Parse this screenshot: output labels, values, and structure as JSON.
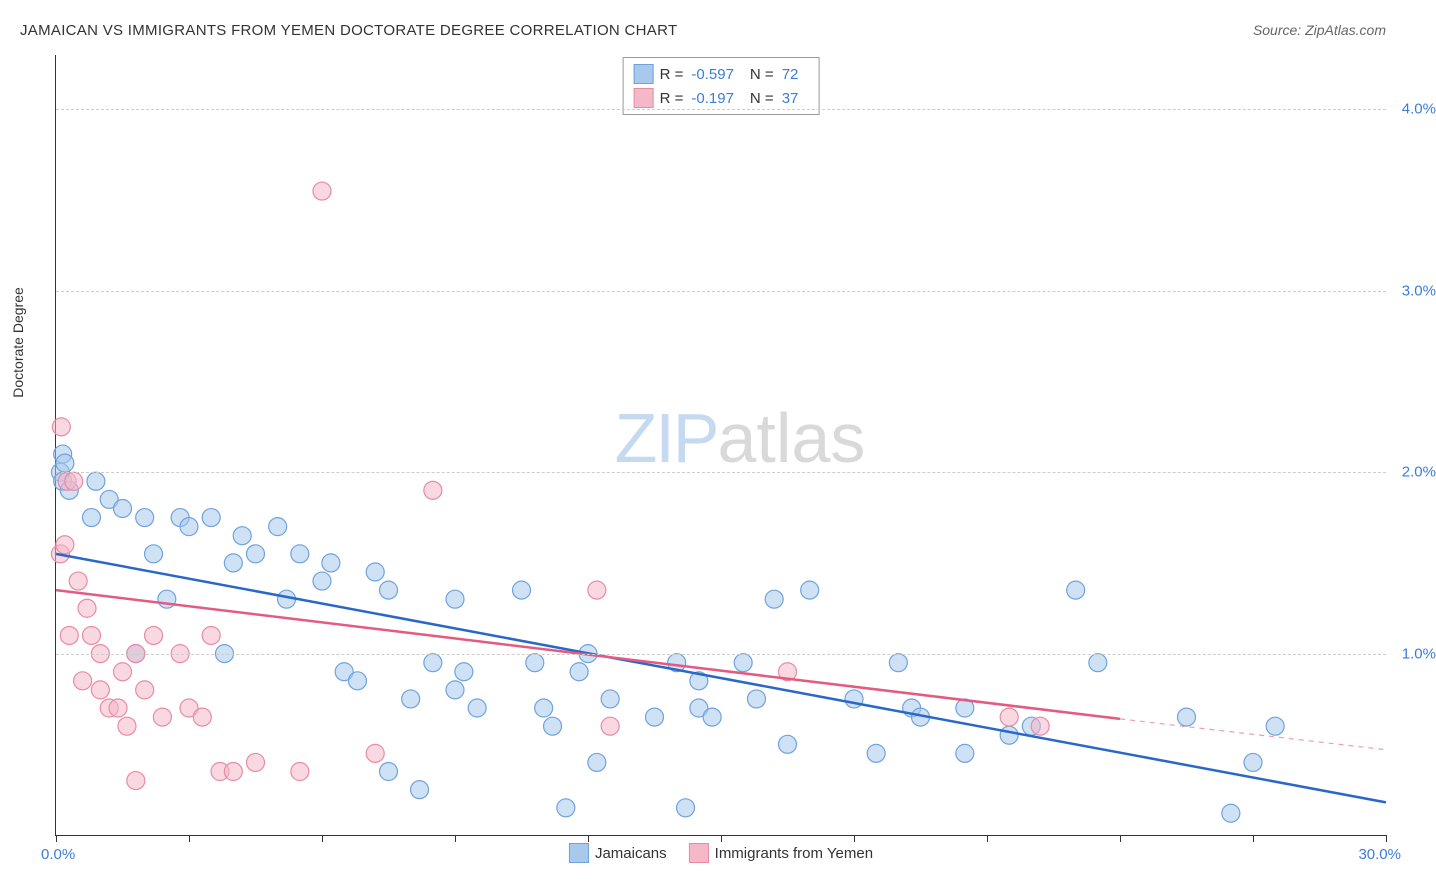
{
  "title": "JAMAICAN VS IMMIGRANTS FROM YEMEN DOCTORATE DEGREE CORRELATION CHART",
  "source": "Source: ZipAtlas.com",
  "y_axis_label": "Doctorate Degree",
  "watermark": {
    "zip": "ZIP",
    "atlas": "atlas"
  },
  "chart": {
    "type": "scatter-with-regression",
    "xlim": [
      0,
      30
    ],
    "ylim": [
      0,
      4.3
    ],
    "x_ticks": [
      0,
      3,
      6,
      9,
      12,
      15,
      18,
      21,
      24,
      27,
      30
    ],
    "x_tick_label_left": "0.0%",
    "x_tick_label_right": "30.0%",
    "y_gridlines": [
      {
        "value": 1.0,
        "label": "1.0%"
      },
      {
        "value": 2.0,
        "label": "2.0%"
      },
      {
        "value": 3.0,
        "label": "3.0%"
      },
      {
        "value": 4.0,
        "label": "4.0%"
      }
    ],
    "grid_color": "#cccccc",
    "background_color": "#ffffff",
    "axis_color": "#333333",
    "marker_radius": 9,
    "marker_opacity": 0.55,
    "line_width": 2.5,
    "series": [
      {
        "name": "Jamaicans",
        "fill_color": "#a8c8ec",
        "stroke_color": "#6fa3dd",
        "line_color": "#2968c8",
        "R": "-0.597",
        "N": "72",
        "regression": {
          "x1": 0,
          "y1": 1.55,
          "x2": 30,
          "y2": 0.18
        },
        "points": [
          [
            0.1,
            2.0
          ],
          [
            0.15,
            2.1
          ],
          [
            0.15,
            1.95
          ],
          [
            0.2,
            2.05
          ],
          [
            0.3,
            1.9
          ],
          [
            0.8,
            1.75
          ],
          [
            0.9,
            1.95
          ],
          [
            1.2,
            1.85
          ],
          [
            1.5,
            1.8
          ],
          [
            2.0,
            1.75
          ],
          [
            1.8,
            1.0
          ],
          [
            2.2,
            1.55
          ],
          [
            2.5,
            1.3
          ],
          [
            2.8,
            1.75
          ],
          [
            3.0,
            1.7
          ],
          [
            3.5,
            1.75
          ],
          [
            3.8,
            1.0
          ],
          [
            4.0,
            1.5
          ],
          [
            4.2,
            1.65
          ],
          [
            4.5,
            1.55
          ],
          [
            5.0,
            1.7
          ],
          [
            5.2,
            1.3
          ],
          [
            5.5,
            1.55
          ],
          [
            6.0,
            1.4
          ],
          [
            6.2,
            1.5
          ],
          [
            6.5,
            0.9
          ],
          [
            6.8,
            0.85
          ],
          [
            7.2,
            1.45
          ],
          [
            7.5,
            1.35
          ],
          [
            7.5,
            0.35
          ],
          [
            8.0,
            0.75
          ],
          [
            8.2,
            0.25
          ],
          [
            8.5,
            0.95
          ],
          [
            9.0,
            1.3
          ],
          [
            9.0,
            0.8
          ],
          [
            9.2,
            0.9
          ],
          [
            9.5,
            0.7
          ],
          [
            10.5,
            1.35
          ],
          [
            10.8,
            0.95
          ],
          [
            11.0,
            0.7
          ],
          [
            11.2,
            0.6
          ],
          [
            11.5,
            0.15
          ],
          [
            11.8,
            0.9
          ],
          [
            12.0,
            1.0
          ],
          [
            12.2,
            0.4
          ],
          [
            12.5,
            0.75
          ],
          [
            13.5,
            0.65
          ],
          [
            14.0,
            0.95
          ],
          [
            14.2,
            0.15
          ],
          [
            14.5,
            0.7
          ],
          [
            14.5,
            0.85
          ],
          [
            14.8,
            0.65
          ],
          [
            15.5,
            0.95
          ],
          [
            15.8,
            0.75
          ],
          [
            16.2,
            1.3
          ],
          [
            16.5,
            0.5
          ],
          [
            17.0,
            1.35
          ],
          [
            18.0,
            0.75
          ],
          [
            18.5,
            0.45
          ],
          [
            19.0,
            0.95
          ],
          [
            19.3,
            0.7
          ],
          [
            19.5,
            0.65
          ],
          [
            20.5,
            0.7
          ],
          [
            20.5,
            0.45
          ],
          [
            21.5,
            0.55
          ],
          [
            22.0,
            0.6
          ],
          [
            23.0,
            1.35
          ],
          [
            23.5,
            0.95
          ],
          [
            25.5,
            0.65
          ],
          [
            26.5,
            0.12
          ],
          [
            27.0,
            0.4
          ],
          [
            27.5,
            0.6
          ]
        ]
      },
      {
        "name": "Immigrants from Yemen",
        "fill_color": "#f5b8c8",
        "stroke_color": "#e88ba5",
        "line_color": "#e35a82",
        "R": "-0.197",
        "N": "37",
        "regression": {
          "x1": 0,
          "y1": 1.35,
          "x2": 24,
          "y2": 0.64
        },
        "regression_dash": {
          "x1": 24,
          "y1": 0.64,
          "x2": 30,
          "y2": 0.47
        },
        "points": [
          [
            0.1,
            1.55
          ],
          [
            0.12,
            2.25
          ],
          [
            0.2,
            1.6
          ],
          [
            0.25,
            1.95
          ],
          [
            0.3,
            1.1
          ],
          [
            0.4,
            1.95
          ],
          [
            0.5,
            1.4
          ],
          [
            0.6,
            0.85
          ],
          [
            0.7,
            1.25
          ],
          [
            0.8,
            1.1
          ],
          [
            1.0,
            0.8
          ],
          [
            1.0,
            1.0
          ],
          [
            1.2,
            0.7
          ],
          [
            1.4,
            0.7
          ],
          [
            1.5,
            0.9
          ],
          [
            1.6,
            0.6
          ],
          [
            1.8,
            0.3
          ],
          [
            1.8,
            1.0
          ],
          [
            2.0,
            0.8
          ],
          [
            2.2,
            1.1
          ],
          [
            2.4,
            0.65
          ],
          [
            2.8,
            1.0
          ],
          [
            3.0,
            0.7
          ],
          [
            3.3,
            0.65
          ],
          [
            3.5,
            1.1
          ],
          [
            3.7,
            0.35
          ],
          [
            4.0,
            0.35
          ],
          [
            4.5,
            0.4
          ],
          [
            5.5,
            0.35
          ],
          [
            6.0,
            3.55
          ],
          [
            7.2,
            0.45
          ],
          [
            8.5,
            1.9
          ],
          [
            12.2,
            1.35
          ],
          [
            12.5,
            0.6
          ],
          [
            16.5,
            0.9
          ],
          [
            21.5,
            0.65
          ],
          [
            22.2,
            0.6
          ]
        ]
      }
    ]
  },
  "legend_top": {
    "rows": [
      {
        "swatch_fill": "#a8c8ec",
        "swatch_stroke": "#6fa3dd",
        "r_label": "R =",
        "r_value": "-0.597",
        "n_label": "N =",
        "n_value": "72"
      },
      {
        "swatch_fill": "#f5b8c8",
        "swatch_stroke": "#e88ba5",
        "r_label": "R =",
        "r_value": "-0.197",
        "n_label": "N =",
        "n_value": "37"
      }
    ]
  },
  "legend_bottom": {
    "items": [
      {
        "swatch_fill": "#a8c8ec",
        "swatch_stroke": "#6fa3dd",
        "label": "Jamaicans"
      },
      {
        "swatch_fill": "#f5b8c8",
        "swatch_stroke": "#e88ba5",
        "label": "Immigrants from Yemen"
      }
    ]
  }
}
